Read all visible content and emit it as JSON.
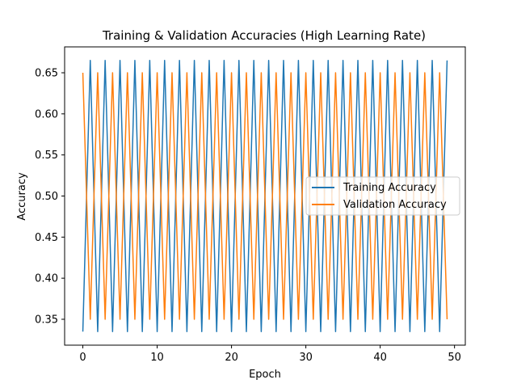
{
  "chart_data": {
    "type": "line",
    "title": "Training & Validation Accuracies (High Learning Rate)",
    "xlabel": "Epoch",
    "ylabel": "Accuracy",
    "xlim": [
      -2.45,
      51.45
    ],
    "ylim": [
      0.3185,
      0.6815
    ],
    "xticks": [
      0,
      10,
      20,
      30,
      40,
      50
    ],
    "yticks": [
      0.35,
      0.4,
      0.45,
      0.5,
      0.55,
      0.6,
      0.65
    ],
    "grid": false,
    "legend_position": "center-right",
    "x": [
      0,
      1,
      2,
      3,
      4,
      5,
      6,
      7,
      8,
      9,
      10,
      11,
      12,
      13,
      14,
      15,
      16,
      17,
      18,
      19,
      20,
      21,
      22,
      23,
      24,
      25,
      26,
      27,
      28,
      29,
      30,
      31,
      32,
      33,
      34,
      35,
      36,
      37,
      38,
      39,
      40,
      41,
      42,
      43,
      44,
      45,
      46,
      47,
      48,
      49
    ],
    "series": [
      {
        "name": "Training Accuracy",
        "color": "#1f77b4",
        "values": [
          0.335,
          0.665,
          0.335,
          0.665,
          0.335,
          0.665,
          0.335,
          0.665,
          0.335,
          0.665,
          0.335,
          0.665,
          0.335,
          0.665,
          0.335,
          0.665,
          0.335,
          0.665,
          0.335,
          0.665,
          0.335,
          0.665,
          0.335,
          0.665,
          0.335,
          0.665,
          0.335,
          0.665,
          0.335,
          0.665,
          0.335,
          0.665,
          0.335,
          0.665,
          0.335,
          0.665,
          0.335,
          0.665,
          0.335,
          0.665,
          0.335,
          0.665,
          0.335,
          0.665,
          0.335,
          0.665,
          0.335,
          0.665,
          0.335,
          0.665
        ]
      },
      {
        "name": "Validation Accuracy",
        "color": "#ff7f0e",
        "values": [
          0.65,
          0.35,
          0.65,
          0.35,
          0.65,
          0.35,
          0.65,
          0.35,
          0.65,
          0.35,
          0.65,
          0.35,
          0.65,
          0.35,
          0.65,
          0.35,
          0.65,
          0.35,
          0.65,
          0.35,
          0.65,
          0.35,
          0.65,
          0.35,
          0.65,
          0.35,
          0.65,
          0.35,
          0.65,
          0.35,
          0.65,
          0.35,
          0.65,
          0.35,
          0.65,
          0.35,
          0.65,
          0.35,
          0.65,
          0.35,
          0.65,
          0.35,
          0.65,
          0.35,
          0.65,
          0.35,
          0.65,
          0.35,
          0.65,
          0.35
        ]
      }
    ]
  }
}
